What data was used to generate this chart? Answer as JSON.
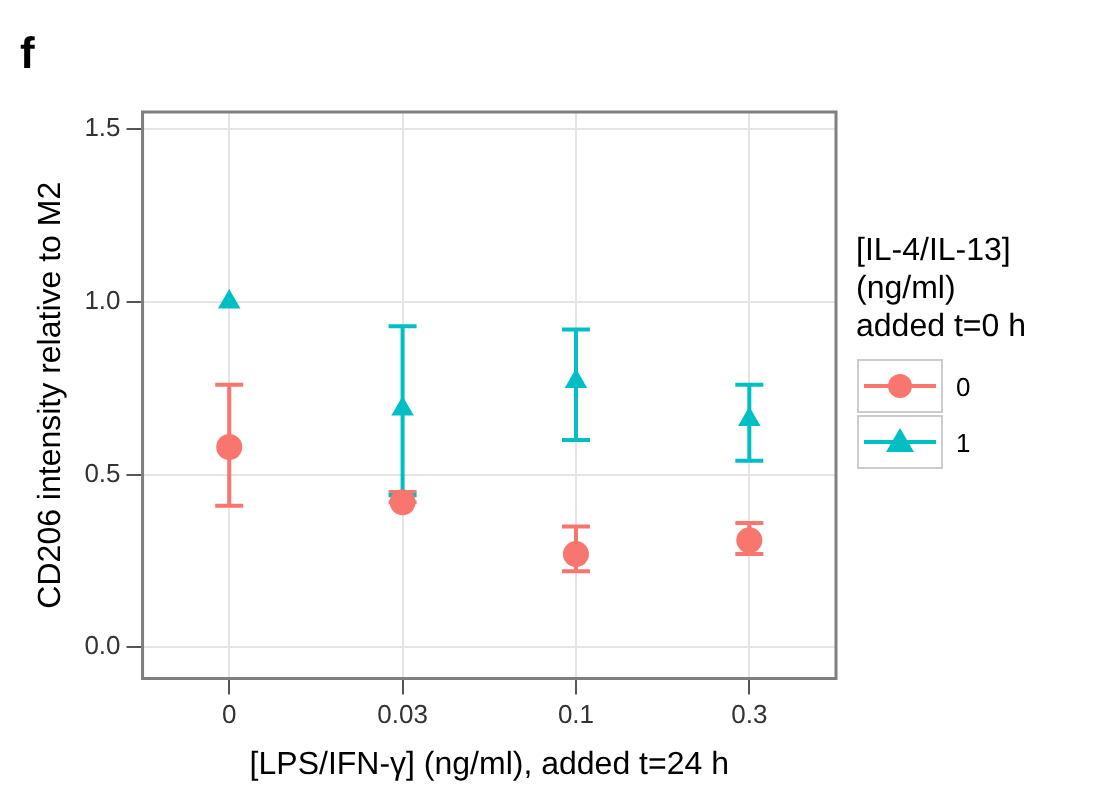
{
  "chart_data": {
    "type": "scatter",
    "title": "f",
    "xlabel": "[LPS/IFN-γ] (ng/ml), added t=24 h",
    "ylabel": "CD206 intensity relative to M2",
    "legend_title": "[IL-4/IL-13] (ng/ml) added t=0 h",
    "categories": [
      "0",
      "0.03",
      "0.1",
      "0.3"
    ],
    "series": [
      {
        "name": "0",
        "color": "#f8766d",
        "marker": "circle",
        "values": [
          0.58,
          0.42,
          0.27,
          0.31
        ],
        "errors": [
          [
            0.41,
            0.76
          ],
          [
            0.42,
            0.45
          ],
          [
            0.22,
            0.35
          ],
          [
            0.27,
            0.36
          ]
        ]
      },
      {
        "name": "1",
        "color": "#00bfc4",
        "marker": "triangle",
        "values": [
          1.0,
          0.69,
          0.77,
          0.66
        ],
        "errors": [
          null,
          [
            0.44,
            0.93
          ],
          [
            0.6,
            0.92
          ],
          [
            0.54,
            0.76
          ]
        ]
      }
    ],
    "ylim": [
      -0.09,
      1.55
    ],
    "yticks": [
      {
        "value": 0,
        "label": "0.0"
      },
      {
        "value": 0.5,
        "label": "0.5"
      },
      {
        "value": 1,
        "label": "1.0"
      },
      {
        "value": 1.5,
        "label": "1.5"
      }
    ],
    "grid": true,
    "legend": "right"
  }
}
